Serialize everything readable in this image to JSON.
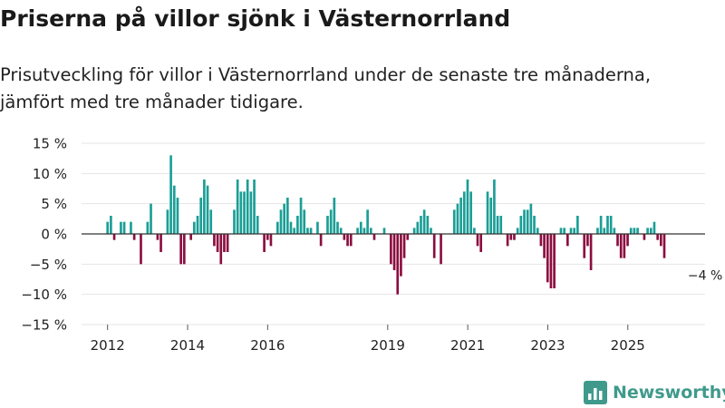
{
  "title": "Priserna på villor sjönk i Västernorrland",
  "subtitle_line1": "Prisutveckling för villor i Västernorrland under de senaste tre månaderna,",
  "subtitle_line2": "jämfört med tre månader tidigare.",
  "brand": "Newsworthy",
  "colors": {
    "positive": "#1a9e96",
    "negative": "#8b0d3f",
    "grid": "#e4e4e4",
    "zero_line": "#333333",
    "text": "#222222",
    "brand": "#3f9a8c"
  },
  "chart_data": {
    "type": "bar",
    "ylabel": "",
    "xlabel": "",
    "ylim": [
      -15,
      15
    ],
    "yticks": [
      15,
      10,
      5,
      0,
      -5,
      -10,
      -15
    ],
    "ytick_labels": [
      "15 %",
      "10 %",
      "5 %",
      "0 %",
      "−5 %",
      "−10 %",
      "−15 %"
    ],
    "xlim": [
      2011.35,
      2026.93
    ],
    "xticks": [
      2012,
      2014,
      2016,
      2019,
      2021,
      2023,
      2025
    ],
    "xtick_labels": [
      "2012",
      "2014",
      "2016",
      "2019",
      "2021",
      "2023",
      "2025"
    ],
    "annotation": {
      "text": "−4 %",
      "x": 2026.0,
      "y": -4
    },
    "x_start": 2012.0,
    "step": 0.0833,
    "values": [
      2,
      3,
      -1,
      0,
      2,
      2,
      0,
      2,
      -1,
      0,
      -5,
      0,
      2,
      5,
      0,
      -1,
      -3,
      0,
      4,
      13,
      8,
      6,
      -5,
      -5,
      0,
      -1,
      2,
      3,
      6,
      9,
      8,
      4,
      -2,
      -3,
      -5,
      -3,
      -3,
      0,
      4,
      9,
      7,
      7,
      9,
      7,
      9,
      3,
      0,
      -3,
      -1,
      -2,
      0,
      2,
      4,
      5,
      6,
      2,
      1,
      3,
      6,
      4,
      1,
      1,
      0,
      2,
      -2,
      0,
      3,
      4,
      6,
      2,
      1,
      -1,
      -2,
      -2,
      0,
      1,
      2,
      1,
      4,
      1,
      -1,
      0,
      0,
      1,
      0,
      -5,
      -6,
      -10,
      -7,
      -4,
      -1,
      0,
      1,
      2,
      3,
      4,
      3,
      1,
      -4,
      0,
      -5,
      0,
      0,
      0,
      4,
      5,
      6,
      7,
      9,
      7,
      1,
      -2,
      -3,
      0,
      7,
      6,
      9,
      3,
      3,
      0,
      -2,
      -1,
      -1,
      1,
      3,
      4,
      4,
      5,
      3,
      1,
      -2,
      -4,
      -8,
      -9,
      -9,
      0,
      1,
      1,
      -2,
      1,
      1,
      3,
      0,
      -4,
      -2,
      -6,
      0,
      1,
      3,
      1,
      3,
      3,
      1,
      -2,
      -4,
      -4,
      -2,
      1,
      1,
      1,
      0,
      -1,
      1,
      1,
      2,
      -1,
      -2,
      -4
    ]
  }
}
